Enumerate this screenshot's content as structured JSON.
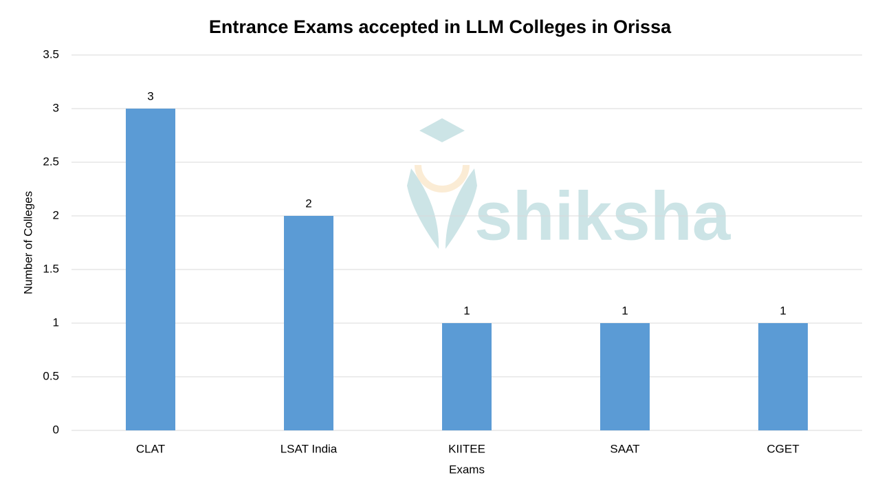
{
  "chart_data": {
    "type": "bar",
    "title": "Entrance Exams accepted in LLM Colleges in Orissa",
    "x_label": "Exams",
    "y_label": "Number of Colleges",
    "categories": [
      "CLAT",
      "LSAT India",
      "KIITEE",
      "SAAT",
      "CGET"
    ],
    "values": [
      3,
      2,
      1,
      1,
      1
    ],
    "color": "#5b9bd5",
    "ylim": [
      0,
      3.5
    ],
    "yticks": [
      0,
      0.5,
      1,
      1.5,
      2,
      2.5,
      3,
      3.5
    ],
    "grid": true,
    "watermark": "shiksha"
  }
}
